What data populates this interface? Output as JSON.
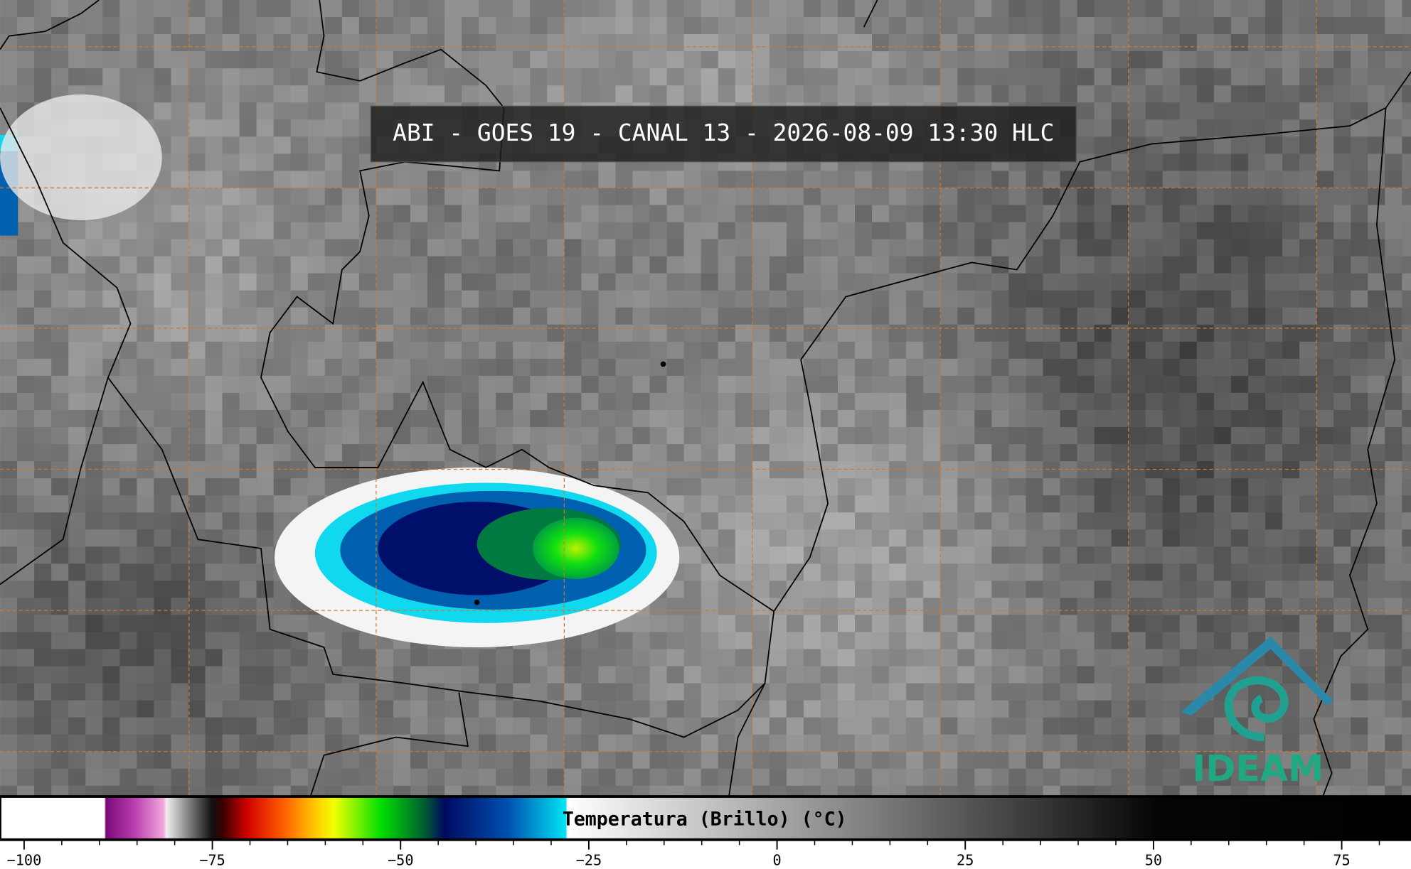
{
  "title": "ABI - GOES 19 - CANAL 13 - 2026-08-09 13:30 HLC",
  "logo": "IDEAM",
  "colorbar": {
    "label": "Temperatura (Brillo) (°C)",
    "lim": [
      -103.2,
      84.2
    ],
    "ticks": [
      {
        "value": -100,
        "label": "−100"
      },
      {
        "value": -75,
        "label": "−75"
      },
      {
        "value": -50,
        "label": "−50"
      },
      {
        "value": -25,
        "label": "−25"
      },
      0,
      25,
      50,
      75
    ],
    "minor_ticks": [
      -95,
      -90,
      -85,
      -80,
      -70,
      -65,
      -60,
      -55,
      -45,
      -40,
      -35,
      -30,
      -20,
      -15,
      -10,
      -5,
      5,
      10,
      15,
      20,
      30,
      35,
      40,
      45,
      55,
      60,
      65,
      70,
      80
    ]
  }
}
